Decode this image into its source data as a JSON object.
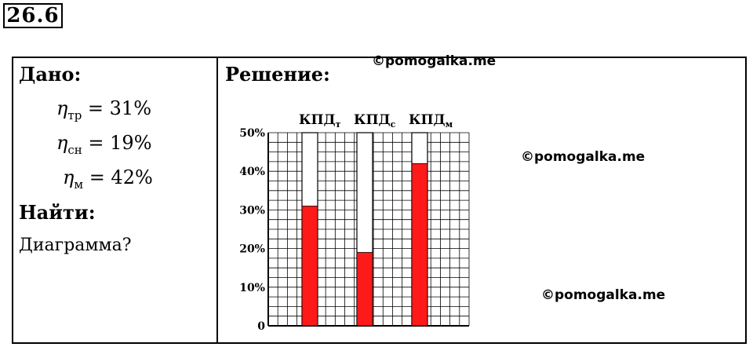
{
  "problem_number": "26.6",
  "given": {
    "title": "Дано:",
    "items": [
      {
        "symbol": "η",
        "sub": "тр",
        "rest": " = 31%"
      },
      {
        "symbol": "η",
        "sub": "сн",
        "rest": " = 19%"
      },
      {
        "symbol": "η",
        "sub": "м",
        "rest": " = 42%"
      }
    ]
  },
  "find": {
    "title": "Найти:",
    "text": "Диаграмма?"
  },
  "solution": {
    "title": "Решение:"
  },
  "watermarks": [
    "©pomogalka.me",
    "©pomogalka.me",
    "©pomogalka.me"
  ],
  "colors": {
    "bar_fill": "#ff1a1a",
    "grid": "#000000"
  },
  "chart_data": {
    "type": "bar",
    "categories": [
      {
        "main": "КПД",
        "sub": "т"
      },
      {
        "main": "КПД",
        "sub": "с"
      },
      {
        "main": "КПД",
        "sub": "м"
      }
    ],
    "values": [
      31,
      19,
      42
    ],
    "ylim": [
      0,
      50
    ],
    "yticks": [
      "0",
      "10%",
      "20%",
      "30%",
      "40%",
      "50%"
    ],
    "grid": true,
    "title": "",
    "xlabel": "",
    "ylabel": ""
  }
}
